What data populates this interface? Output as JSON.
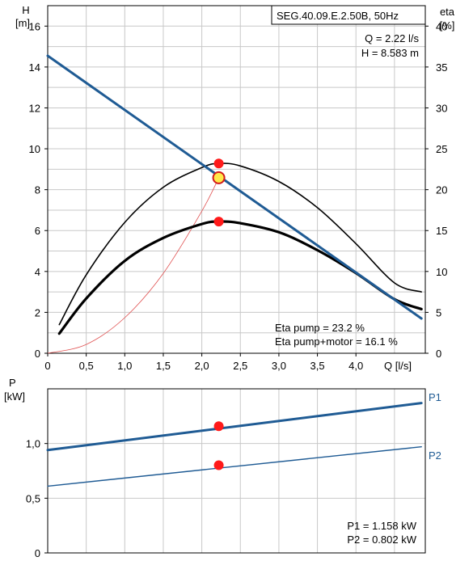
{
  "colors": {
    "grid": "#c8c8c8",
    "axis": "#000000",
    "curve_blue": "#1f5b94",
    "curve_black": "#000000",
    "system_curve": "#e05050",
    "point_red": "#ff1a1a",
    "point_yellow": "#ffe94a"
  },
  "chart_data": [
    {
      "type": "line",
      "title": "SEG.40.09.E.2.50B, 50Hz",
      "xlabel": "Q [l/s]",
      "ylabel_line1": "H",
      "ylabel_line2": "[m]",
      "y2label_line1": "eta",
      "y2label_line2": "[%]",
      "xlim": [
        0,
        4.9
      ],
      "ylim": [
        0,
        17
      ],
      "y2lim": [
        0,
        42.5
      ],
      "x_ticks": [
        "0",
        "0,5",
        "1,0",
        "1,5",
        "2,0",
        "2,5",
        "3,0",
        "3,5",
        "4,0"
      ],
      "y_ticks": [
        "0",
        "2",
        "4",
        "6",
        "8",
        "10",
        "12",
        "14",
        "16"
      ],
      "y2_ticks": [
        "0",
        "5",
        "10",
        "15",
        "20",
        "25",
        "30",
        "35",
        "40"
      ],
      "grid": true,
      "series": [
        {
          "role": "h",
          "x": [
            0,
            4.85
          ],
          "y": [
            14.55,
            1.7
          ]
        },
        {
          "role": "eta_pump",
          "x": [
            0.15,
            0.5,
            1.0,
            1.5,
            2.0,
            2.22,
            2.5,
            3.0,
            3.5,
            4.0,
            4.5,
            4.85
          ],
          "y": [
            3.5,
            9.6,
            16.0,
            20.3,
            22.7,
            23.2,
            22.9,
            21.0,
            17.8,
            13.4,
            8.6,
            7.5
          ]
        },
        {
          "role": "eta_total",
          "x": [
            0.15,
            0.5,
            1.0,
            1.5,
            2.0,
            2.22,
            2.5,
            3.0,
            3.5,
            4.0,
            4.5,
            4.85
          ],
          "y": [
            2.4,
            6.7,
            11.3,
            14.1,
            15.8,
            16.1,
            15.9,
            14.8,
            12.6,
            9.8,
            6.6,
            5.4
          ]
        },
        {
          "role": "system",
          "x": [
            0,
            0.5,
            1.0,
            1.5,
            2.0,
            2.22
          ],
          "y": [
            0,
            0.43,
            1.74,
            3.91,
            6.95,
            8.58
          ]
        }
      ],
      "points": [
        {
          "role": "eta_pump_point",
          "x": 2.22,
          "y": 9.28
        },
        {
          "role": "duty_point",
          "x": 2.22,
          "y": 8.583
        },
        {
          "role": "eta_total_point",
          "x": 2.22,
          "y": 6.44
        }
      ],
      "annotations": {
        "q": "Q = 2.22 l/s",
        "h": "H = 8.583 m",
        "eta_pump": "Eta pump = 23.2 %",
        "eta_total": "Eta pump+motor = 16.1 %"
      }
    },
    {
      "type": "line",
      "ylabel_line1": "P",
      "ylabel_line2": "[kW]",
      "xlim": [
        0,
        4.9
      ],
      "ylim": [
        0,
        1.5
      ],
      "y_ticks": [
        "0",
        "0,5",
        "1,0"
      ],
      "y_tick_values": [
        0,
        0.5,
        1.0
      ],
      "grid": true,
      "series": [
        {
          "name": "P1",
          "x": [
            0,
            4.85
          ],
          "y": [
            0.94,
            1.37
          ]
        },
        {
          "name": "P2",
          "x": [
            0,
            4.85
          ],
          "y": [
            0.61,
            0.97
          ]
        }
      ],
      "points": [
        {
          "role": "p1_point",
          "x": 2.22,
          "y": 1.158
        },
        {
          "role": "p2_point",
          "x": 2.22,
          "y": 0.802
        }
      ],
      "annotations": {
        "p1": "P1 = 1.158 kW",
        "p2": "P2 = 0.802 kW"
      }
    }
  ]
}
